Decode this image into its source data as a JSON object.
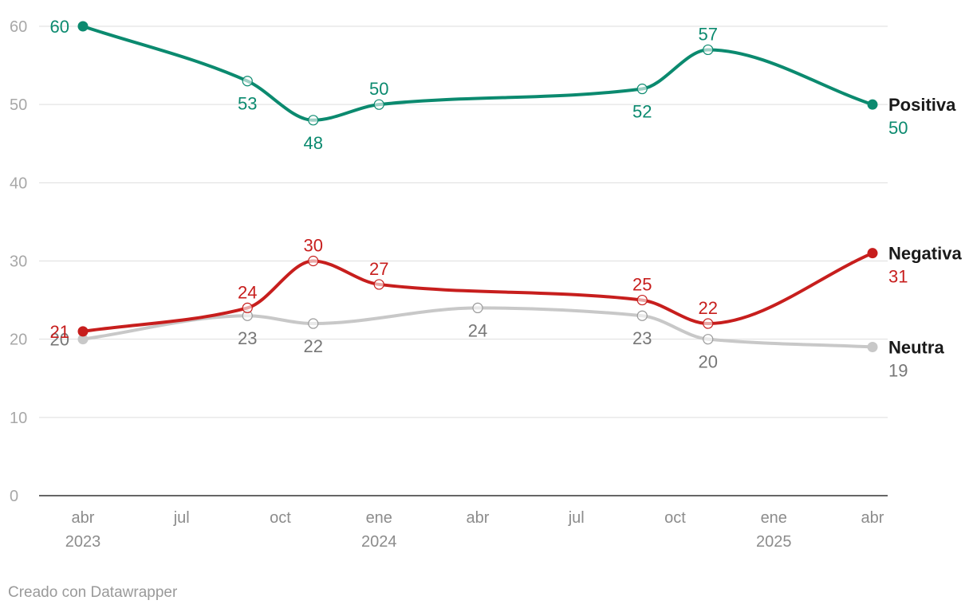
{
  "chart_data": {
    "type": "line",
    "ylim": [
      0,
      60
    ],
    "yticks": [
      0,
      10,
      20,
      30,
      40,
      50,
      60
    ],
    "xlim": [
      "2023-04",
      "2025-04"
    ],
    "xticks": [
      {
        "month": 0,
        "label": "abr",
        "year": "2023"
      },
      {
        "month": 3,
        "label": "jul",
        "year": ""
      },
      {
        "month": 6,
        "label": "oct",
        "year": ""
      },
      {
        "month": 9,
        "label": "ene",
        "year": "2024"
      },
      {
        "month": 12,
        "label": "abr",
        "year": ""
      },
      {
        "month": 15,
        "label": "jul",
        "year": ""
      },
      {
        "month": 18,
        "label": "oct",
        "year": ""
      },
      {
        "month": 21,
        "label": "ene",
        "year": "2025"
      },
      {
        "month": 24,
        "label": "abr",
        "year": ""
      }
    ],
    "grid": true,
    "series": [
      {
        "name": "Positiva",
        "color": "#0b8a6f",
        "points": [
          {
            "month": 0,
            "value": 60
          },
          {
            "month": 5,
            "value": 53
          },
          {
            "month": 7,
            "value": 48
          },
          {
            "month": 9,
            "value": 50
          },
          {
            "month": 17,
            "value": 52
          },
          {
            "month": 19,
            "value": 57
          },
          {
            "month": 24,
            "value": 50
          }
        ]
      },
      {
        "name": "Negativa",
        "color": "#c71e1d",
        "points": [
          {
            "month": 0,
            "value": 21
          },
          {
            "month": 5,
            "value": 24
          },
          {
            "month": 7,
            "value": 30
          },
          {
            "month": 9,
            "value": 27
          },
          {
            "month": 17,
            "value": 25
          },
          {
            "month": 19,
            "value": 22
          },
          {
            "month": 24,
            "value": 31
          }
        ]
      },
      {
        "name": "Neutra",
        "color": "#c8c8c8",
        "text_color": "#777777",
        "points": [
          {
            "month": 0,
            "value": 20
          },
          {
            "month": 5,
            "value": 23
          },
          {
            "month": 7,
            "value": 22
          },
          {
            "month": 12,
            "value": 24
          },
          {
            "month": 17,
            "value": 23
          },
          {
            "month": 19,
            "value": 20
          },
          {
            "month": 24,
            "value": 19
          }
        ]
      }
    ]
  },
  "footer": {
    "credit": "Creado con Datawrapper"
  }
}
